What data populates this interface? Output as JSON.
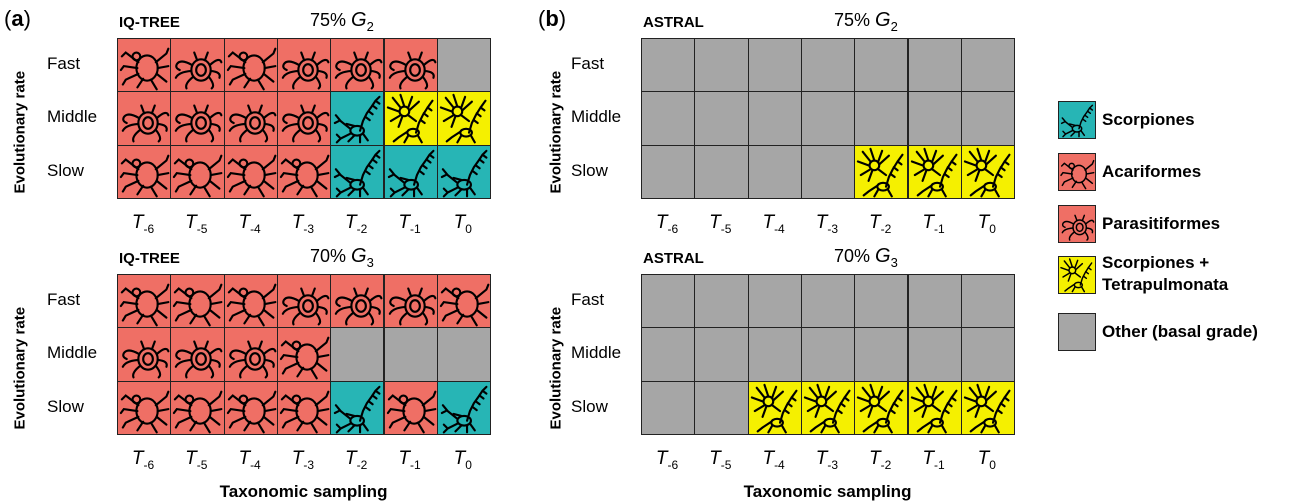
{
  "legend": [
    {
      "key": "S",
      "label": "Scorpiones",
      "color": "#27b5b5",
      "icon": "scorpion-icon"
    },
    {
      "key": "A",
      "label": "Acariformes",
      "color": "#ef6f65",
      "icon": "mite-icon"
    },
    {
      "key": "P",
      "label": "Parasitiformes",
      "color": "#ef6f65",
      "icon": "tick-icon"
    },
    {
      "key": "T",
      "label": "Scorpiones + Tetrapulmonata",
      "color": "#f5f000",
      "icon": "scorpion-spider-icon"
    },
    {
      "key": "O",
      "label": "Other (basal grade)",
      "color": "#a6a6a6",
      "icon": ""
    }
  ],
  "chart_data": [
    {
      "type": "heatmap",
      "panel": "(a)",
      "method": "IQ-TREE",
      "threshold": "75%",
      "gene_symbol": "G",
      "gene_sub": "2",
      "ylabel": "Evolutionary rate",
      "xlabel": "Taxonomic sampling",
      "rows": [
        "Fast",
        "Middle",
        "Slow"
      ],
      "columns": [
        {
          "main": "T",
          "sub": "-6"
        },
        {
          "main": "T",
          "sub": "-5"
        },
        {
          "main": "T",
          "sub": "-4"
        },
        {
          "main": "T",
          "sub": "-3"
        },
        {
          "main": "T",
          "sub": "-2"
        },
        {
          "main": "T",
          "sub": "-1"
        },
        {
          "main": "T",
          "sub": "0"
        }
      ],
      "cells": [
        [
          "A",
          "P",
          "A",
          "P",
          "P",
          "P",
          "O"
        ],
        [
          "P",
          "P",
          "P",
          "P",
          "S",
          "T",
          "T"
        ],
        [
          "A",
          "A",
          "A",
          "A",
          "S",
          "S",
          "S"
        ]
      ]
    },
    {
      "type": "heatmap",
      "panel": "(b)",
      "method": "ASTRAL",
      "threshold": "75%",
      "gene_symbol": "G",
      "gene_sub": "2",
      "ylabel": "Evolutionary rate",
      "xlabel": "Taxonomic sampling",
      "rows": [
        "Fast",
        "Middle",
        "Slow"
      ],
      "columns": [
        {
          "main": "T",
          "sub": "-6"
        },
        {
          "main": "T",
          "sub": "-5"
        },
        {
          "main": "T",
          "sub": "-4"
        },
        {
          "main": "T",
          "sub": "-3"
        },
        {
          "main": "T",
          "sub": "-2"
        },
        {
          "main": "T",
          "sub": "-1"
        },
        {
          "main": "T",
          "sub": "0"
        }
      ],
      "cells": [
        [
          "O",
          "O",
          "O",
          "O",
          "O",
          "O",
          "O"
        ],
        [
          "O",
          "O",
          "O",
          "O",
          "O",
          "O",
          "O"
        ],
        [
          "O",
          "O",
          "O",
          "O",
          "T",
          "T",
          "T"
        ]
      ]
    },
    {
      "type": "heatmap",
      "panel": "",
      "method": "IQ-TREE",
      "threshold": "70%",
      "gene_symbol": "G",
      "gene_sub": "3",
      "ylabel": "Evolutionary rate",
      "xlabel": "Taxonomic sampling",
      "rows": [
        "Fast",
        "Middle",
        "Slow"
      ],
      "columns": [
        {
          "main": "T",
          "sub": "-6"
        },
        {
          "main": "T",
          "sub": "-5"
        },
        {
          "main": "T",
          "sub": "-4"
        },
        {
          "main": "T",
          "sub": "-3"
        },
        {
          "main": "T",
          "sub": "-2"
        },
        {
          "main": "T",
          "sub": "-1"
        },
        {
          "main": "T",
          "sub": "0"
        }
      ],
      "cells": [
        [
          "A",
          "A",
          "A",
          "P",
          "P",
          "P",
          "A"
        ],
        [
          "P",
          "P",
          "P",
          "A",
          "O",
          "O",
          "O"
        ],
        [
          "A",
          "A",
          "A",
          "A",
          "S",
          "A",
          "S"
        ]
      ]
    },
    {
      "type": "heatmap",
      "panel": "",
      "method": "ASTRAL",
      "threshold": "70%",
      "gene_symbol": "G",
      "gene_sub": "3",
      "ylabel": "Evolutionary rate",
      "xlabel": "Taxonomic sampling",
      "rows": [
        "Fast",
        "Middle",
        "Slow"
      ],
      "columns": [
        {
          "main": "T",
          "sub": "-6"
        },
        {
          "main": "T",
          "sub": "-5"
        },
        {
          "main": "T",
          "sub": "-4"
        },
        {
          "main": "T",
          "sub": "-3"
        },
        {
          "main": "T",
          "sub": "-2"
        },
        {
          "main": "T",
          "sub": "-1"
        },
        {
          "main": "T",
          "sub": "0"
        }
      ],
      "cells": [
        [
          "O",
          "O",
          "O",
          "O",
          "O",
          "O",
          "O"
        ],
        [
          "O",
          "O",
          "O",
          "O",
          "O",
          "O",
          "O"
        ],
        [
          "O",
          "O",
          "T",
          "T",
          "T",
          "T",
          "T"
        ]
      ]
    }
  ]
}
